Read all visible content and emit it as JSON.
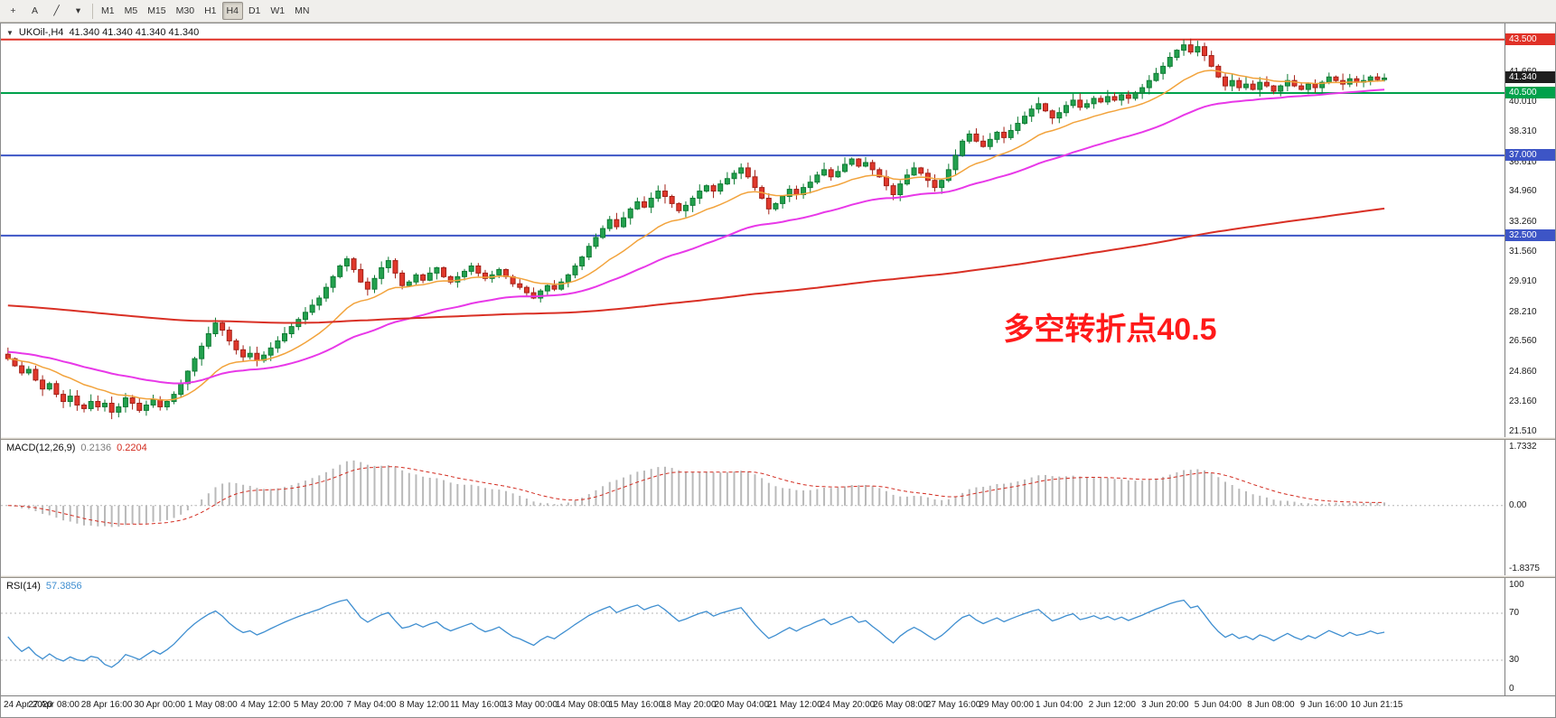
{
  "toolbar": {
    "tools": [
      {
        "name": "crosshair-tool-icon",
        "glyph": "+"
      },
      {
        "name": "text-label-tool-icon",
        "glyph": "A"
      },
      {
        "name": "trendline-tool-icon",
        "glyph": "╱"
      },
      {
        "name": "shapes-dropdown-icon",
        "glyph": "▾"
      }
    ],
    "timeframes": [
      "M1",
      "M5",
      "M15",
      "M30",
      "H1",
      "H4",
      "D1",
      "W1",
      "MN"
    ],
    "active_timeframe": "H4"
  },
  "chart": {
    "caret_glyph": "▼",
    "symbol_label": "UKOil-,H4",
    "ohlc": "41.340 41.340 41.340 41.340",
    "annotation_text": "多空转折点40.5",
    "annotation_color": "#ff1a1a",
    "price_axis": {
      "badges": [
        {
          "label": "43.500",
          "price": 43.5,
          "color": "#e03127"
        },
        {
          "label": "41.340",
          "price": 41.34,
          "color": "#1f1f1f"
        },
        {
          "label": "40.500",
          "price": 40.5,
          "color": "#00a14b"
        },
        {
          "label": "37.000",
          "price": 37.0,
          "color": "#3d55c6"
        },
        {
          "label": "32.500",
          "price": 32.5,
          "color": "#3d55c6"
        }
      ]
    },
    "hlines": [
      {
        "price": 43.5,
        "color": "#e03127"
      },
      {
        "price": 40.5,
        "color": "#00a14b"
      },
      {
        "price": 37.0,
        "color": "#3d55c6"
      },
      {
        "price": 32.5,
        "color": "#3d55c6"
      }
    ]
  },
  "chart_data": {
    "type": "candlestick",
    "symbol": "UKOil",
    "timeframe": "H4",
    "title": "UKOil-,H4",
    "current_price": 41.34,
    "y_axis": {
      "min": 21.2,
      "max": 44.4,
      "tick_labels": [
        "41.660",
        "40.010",
        "38.310",
        "36.610",
        "34.960",
        "33.260",
        "31.560",
        "29.910",
        "28.210",
        "26.560",
        "24.860",
        "23.160",
        "21.510"
      ]
    },
    "x_labels": [
      "24 Apr 2020",
      "27 Apr 08:00",
      "28 Apr 16:00",
      "30 Apr 00:00",
      "1 May 08:00",
      "4 May 12:00",
      "5 May 20:00",
      "7 May 04:00",
      "8 May 12:00",
      "11 May 16:00",
      "13 May 00:00",
      "14 May 08:00",
      "15 May 16:00",
      "18 May 20:00",
      "20 May 04:00",
      "21 May 12:00",
      "24 May 20:00",
      "26 May 08:00",
      "27 May 16:00",
      "29 May 00:00",
      "1 Jun 04:00",
      "2 Jun 12:00",
      "3 Jun 20:00",
      "5 Jun 04:00",
      "8 Jun 08:00",
      "9 Jun 16:00",
      "10 Jun 21:15"
    ],
    "closes": [
      25.6,
      25.2,
      24.8,
      25.0,
      24.4,
      23.9,
      24.2,
      23.6,
      23.2,
      23.5,
      23.0,
      22.8,
      23.2,
      22.9,
      23.1,
      22.6,
      22.9,
      23.4,
      23.1,
      22.7,
      23.0,
      23.3,
      22.9,
      23.2,
      23.6,
      24.2,
      24.9,
      25.6,
      26.3,
      27.0,
      27.6,
      27.2,
      26.6,
      26.1,
      25.7,
      25.9,
      25.5,
      25.8,
      26.2,
      26.6,
      27.0,
      27.4,
      27.8,
      28.2,
      28.6,
      29.0,
      29.6,
      30.2,
      30.8,
      31.2,
      30.6,
      29.9,
      29.5,
      30.1,
      30.7,
      31.1,
      30.4,
      29.7,
      29.9,
      30.3,
      30.0,
      30.4,
      30.7,
      30.2,
      29.9,
      30.2,
      30.5,
      30.8,
      30.4,
      30.1,
      30.3,
      30.6,
      30.2,
      29.8,
      29.6,
      29.3,
      29.0,
      29.4,
      29.7,
      29.5,
      29.9,
      30.3,
      30.8,
      31.3,
      31.9,
      32.4,
      32.9,
      33.4,
      33.0,
      33.5,
      34.0,
      34.4,
      34.1,
      34.6,
      35.0,
      34.7,
      34.3,
      33.9,
      34.2,
      34.6,
      35.0,
      35.3,
      35.0,
      35.4,
      35.7,
      36.0,
      36.3,
      35.8,
      35.2,
      34.6,
      34.0,
      34.3,
      34.7,
      35.1,
      34.8,
      35.2,
      35.5,
      35.9,
      36.2,
      35.8,
      36.1,
      36.5,
      36.8,
      36.4,
      36.6,
      36.2,
      35.8,
      35.3,
      34.8,
      35.4,
      35.9,
      36.3,
      36.0,
      35.6,
      35.2,
      35.6,
      36.2,
      37.0,
      37.8,
      38.2,
      37.8,
      37.5,
      37.9,
      38.3,
      38.0,
      38.4,
      38.8,
      39.2,
      39.6,
      39.9,
      39.5,
      39.1,
      39.4,
      39.8,
      40.1,
      39.7,
      39.9,
      40.2,
      40.0,
      40.3,
      40.1,
      40.4,
      40.2,
      40.5,
      40.8,
      41.2,
      41.6,
      42.0,
      42.5,
      42.9,
      43.2,
      42.8,
      43.1,
      42.6,
      42.0,
      41.4,
      40.9,
      41.2,
      40.8,
      41.0,
      40.7,
      41.1,
      40.9,
      40.6,
      40.9,
      41.2,
      40.9,
      40.7,
      41.0,
      40.8,
      41.1,
      41.4,
      41.2,
      41.0,
      41.3,
      41.1,
      41.2,
      41.4,
      41.25,
      41.34
    ],
    "overlays": [
      {
        "name": "fast-ma",
        "color": "#f2a33c",
        "alpha": 0.12,
        "seed": null,
        "width": 1.5
      },
      {
        "name": "mid-ma",
        "color": "#e838e8",
        "alpha": 0.045,
        "seed": 26.0,
        "width": 2
      },
      {
        "name": "slow-ma",
        "color": "#d93025",
        "alpha": 0.007,
        "seed": 28.6,
        "width": 2
      }
    ],
    "indicators": [
      {
        "type": "macd",
        "fast": 12,
        "slow": 26,
        "signal": 9,
        "last_main": 0.2136,
        "last_signal": 0.2204,
        "axis_max": 1.7332,
        "axis_min": -1.8375
      },
      {
        "type": "rsi",
        "period": 14,
        "last_value": 57.3856,
        "levels": [
          70,
          30
        ],
        "range": [
          0,
          100
        ]
      }
    ]
  },
  "macd": {
    "name": "MACD(12,26,9)",
    "main_value": "0.2136",
    "signal_value": "0.2204",
    "axis": {
      "max": 1.7332,
      "min": -1.8375,
      "max_label": "1.7332",
      "zero_label": "0.00",
      "min_label": "-1.8375"
    }
  },
  "rsi": {
    "name": "RSI(14)",
    "value": "57.3856",
    "levels": [
      70,
      30
    ],
    "axis_labels": [
      {
        "v": 100,
        "label": "100"
      },
      {
        "v": 70,
        "label": "70"
      },
      {
        "v": 30,
        "label": "30"
      },
      {
        "v": 0,
        "label": "0"
      }
    ]
  }
}
